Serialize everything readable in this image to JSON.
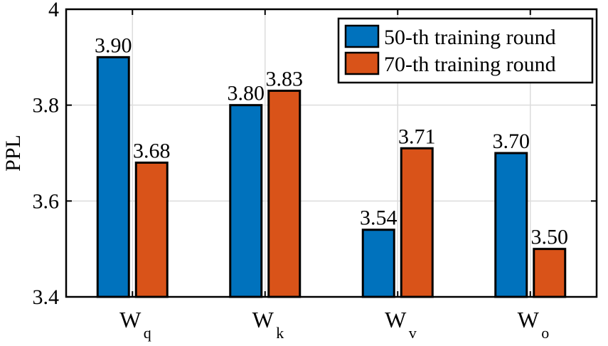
{
  "chart_data": {
    "type": "bar",
    "title": "",
    "xlabel": "",
    "ylabel": "PPL",
    "ylim": [
      3.4,
      4.0
    ],
    "yticks": [
      "3.4",
      "3.6",
      "3.8",
      "4"
    ],
    "categories": [
      {
        "main": "W",
        "sub": "q"
      },
      {
        "main": "W",
        "sub": "k"
      },
      {
        "main": "W",
        "sub": "v"
      },
      {
        "main": "W",
        "sub": "o"
      }
    ],
    "series": [
      {
        "name": "50-th training round",
        "color": "#0072BD",
        "values": [
          3.9,
          3.8,
          3.54,
          3.7
        ],
        "labels": [
          "3.90",
          "3.80",
          "3.54",
          "3.70"
        ]
      },
      {
        "name": "70-th training round",
        "color": "#D95319",
        "values": [
          3.68,
          3.83,
          3.71,
          3.5
        ],
        "labels": [
          "3.68",
          "3.83",
          "3.71",
          "3.50"
        ]
      }
    ],
    "grid": true,
    "legend": "top-right"
  }
}
